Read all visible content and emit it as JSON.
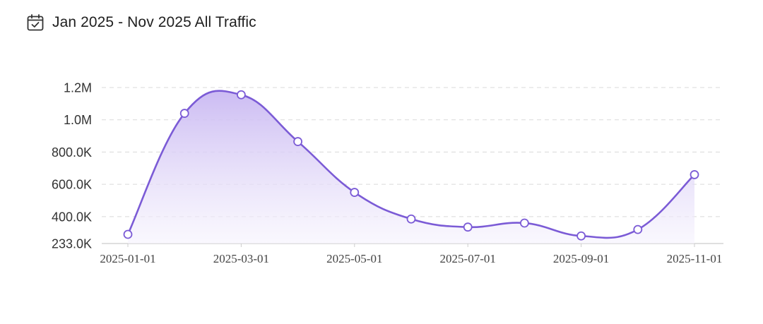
{
  "header": {
    "title": "Jan 2025 - Nov 2025 All Traffic",
    "icon": "calendar-check-icon"
  },
  "chart_data": {
    "type": "area",
    "title": "Jan 2025 - Nov 2025 All Traffic",
    "x": [
      "2025-01-01",
      "2025-02-01",
      "2025-03-01",
      "2025-04-01",
      "2025-05-01",
      "2025-06-01",
      "2025-07-01",
      "2025-08-01",
      "2025-09-01",
      "2025-10-01",
      "2025-11-01"
    ],
    "values": [
      290000,
      1040000,
      1155000,
      865000,
      550000,
      385000,
      335000,
      360000,
      280000,
      320000,
      660000
    ],
    "ylim": [
      233000,
      1250000
    ],
    "y_ticks": [
      {
        "value": 233000,
        "label": "233.0K"
      },
      {
        "value": 400000,
        "label": "400.0K"
      },
      {
        "value": 600000,
        "label": "600.0K"
      },
      {
        "value": 800000,
        "label": "800.0K"
      },
      {
        "value": 1000000,
        "label": "1.0M"
      },
      {
        "value": 1200000,
        "label": "1.2M"
      }
    ],
    "x_ticks": [
      "2025-01-01",
      "2025-03-01",
      "2025-05-01",
      "2025-07-01",
      "2025-09-01",
      "2025-11-01"
    ],
    "grid": true,
    "colors": {
      "line": "#7b5bd6",
      "fill_top": "#c9b8f2",
      "fill_bottom": "#f6f3fd",
      "grid": "#d9d9d9",
      "axis": "#cccccc"
    }
  }
}
